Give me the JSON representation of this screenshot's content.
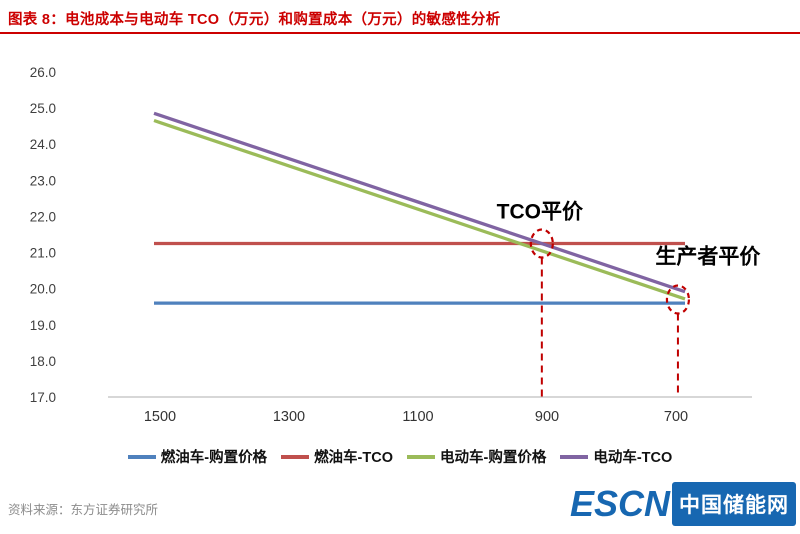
{
  "header": {
    "title": "图表 8：电池成本与电动车 TCO（万元）和购置成本（万元）的敏感性分析"
  },
  "footer": {
    "source": "资料来源：东方证券研究所",
    "logo_text": "ESCN",
    "logo_cn": "中国储能网"
  },
  "chart_data": {
    "type": "line",
    "title": "电池成本与电动车 TCO（万元）和购置成本（万元）的敏感性分析",
    "x": [
      1500,
      1300,
      1100,
      900,
      700
    ],
    "x_order": "descending",
    "ylim": [
      17.0,
      26.0
    ],
    "yticks": [
      26.0,
      25.0,
      24.0,
      23.0,
      22.0,
      21.0,
      20.0,
      19.0,
      18.0,
      17.0
    ],
    "grid": false,
    "legend_position": "bottom",
    "series": [
      {
        "name": "燃油车-购置价格",
        "color": "#4F81BD",
        "values": [
          19.6,
          19.6,
          19.6,
          19.6,
          19.6
        ]
      },
      {
        "name": "燃油车-TCO",
        "color": "#C0504D",
        "values": [
          21.25,
          21.25,
          21.25,
          21.25,
          21.25
        ]
      },
      {
        "name": "电动车-购置价格",
        "color": "#9BBB59",
        "values": [
          24.6,
          23.4,
          22.2,
          21.0,
          19.8
        ]
      },
      {
        "name": "电动车-TCO",
        "color": "#8064A2",
        "values": [
          24.8,
          23.6,
          22.4,
          21.2,
          20.0
        ]
      }
    ],
    "annotations": [
      {
        "label": "TCO平价",
        "x": 908,
        "y": 21.25,
        "label_offset": [
          -2,
          -25
        ],
        "vline": true
      },
      {
        "label": "生产者平价",
        "x": 697,
        "y": 19.7,
        "label_offset": [
          30,
          -36
        ],
        "vline": true
      }
    ],
    "annotation_color": "#C00000"
  }
}
